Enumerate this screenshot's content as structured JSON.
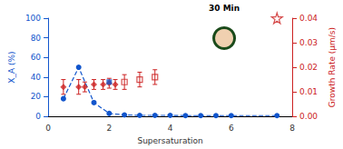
{
  "chart_data": {
    "type": "scatter",
    "xlabel": "Supersaturation",
    "ylabel": "X_A (%)",
    "y2label": "Growth Rate (μm/s)",
    "annotation": "30 Min",
    "xlim": [
      0,
      8
    ],
    "xticks": [
      0,
      2,
      4,
      6,
      8
    ],
    "ylim": [
      0,
      100
    ],
    "yticks": [
      0,
      20,
      40,
      60,
      80,
      100
    ],
    "y2lim": [
      0,
      0.04
    ],
    "y2ticks": [
      {
        "value": 0,
        "label": "0.00"
      },
      0.01,
      0.02,
      0.03,
      0.04
    ],
    "grid": false,
    "series": [
      {
        "type": "line",
        "axis": "y",
        "marker": "circle",
        "line_style": "dashed",
        "color": "#1155cc",
        "x": [
          0.5,
          1.0,
          1.5,
          2.0,
          2.5,
          3.0,
          3.5,
          4.0,
          4.5,
          5.0,
          5.5,
          6.0,
          7.5
        ],
        "values": [
          18,
          50,
          14,
          3,
          1.5,
          1.0,
          1.0,
          1.0,
          0.8,
          0.8,
          0.8,
          0.8,
          0.8
        ]
      },
      {
        "type": "scatter",
        "axis": "y2",
        "marker": "diamond",
        "color": "#cc2222",
        "x": [
          0.5,
          1.0,
          1.2,
          1.5,
          1.8,
          2.0,
          2.2
        ],
        "values": [
          0.012,
          0.012,
          0.012,
          0.013,
          0.013,
          0.0135,
          0.013
        ],
        "errors": [
          0.003,
          0.003,
          0.002,
          0.002,
          0.002,
          0.002,
          0.002
        ]
      },
      {
        "type": "scatter",
        "axis": "y2",
        "marker": "square-open",
        "color": "#cc2222",
        "x": [
          2.5,
          3.0,
          3.5
        ],
        "values": [
          0.014,
          0.015,
          0.016
        ],
        "errors": [
          0.003,
          0.003,
          0.003
        ]
      },
      {
        "type": "scatter",
        "axis": "y2",
        "marker": "square",
        "color": "#1155cc",
        "x": [
          2.0
        ],
        "values": [
          0.014
        ]
      },
      {
        "type": "scatter",
        "axis": "y2",
        "marker": "star-open",
        "color": "#cc2222",
        "x": [
          7.5
        ],
        "values": [
          0.04
        ]
      }
    ]
  }
}
